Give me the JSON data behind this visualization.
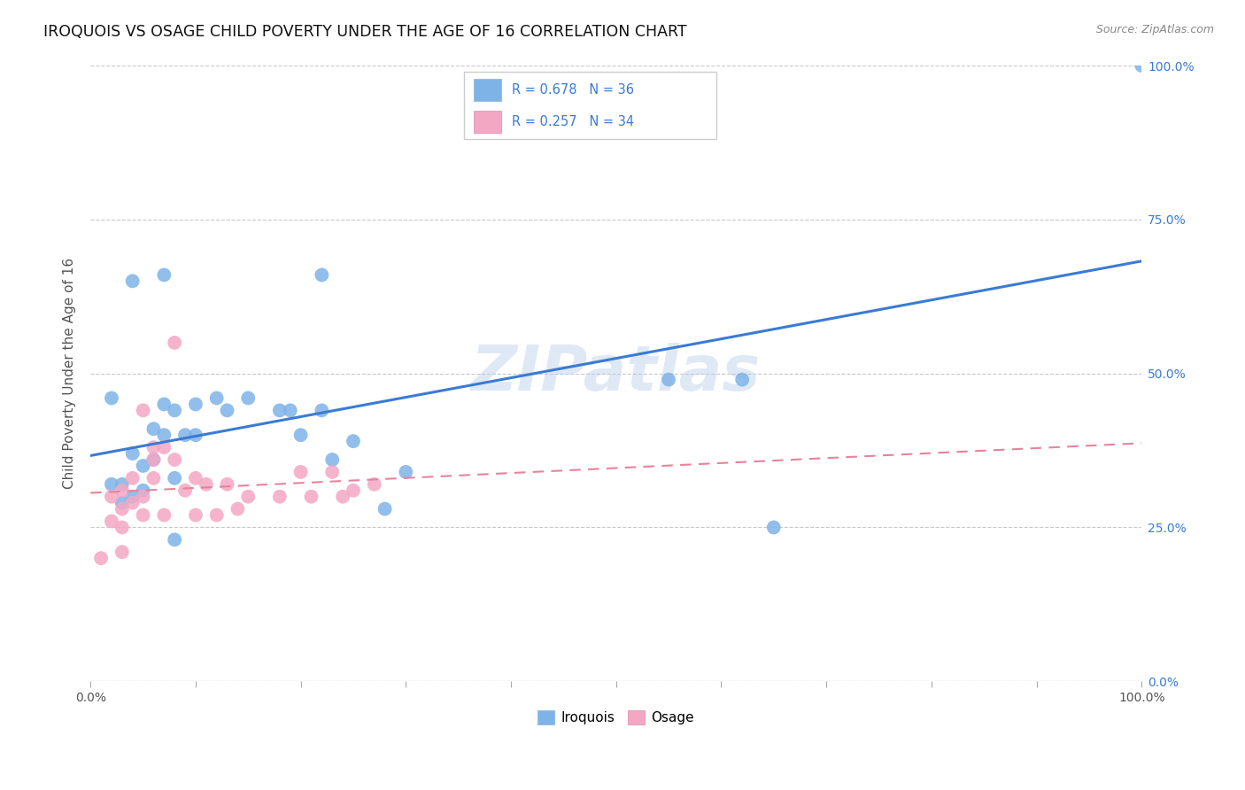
{
  "title": "IROQUOIS VS OSAGE CHILD POVERTY UNDER THE AGE OF 16 CORRELATION CHART",
  "source": "Source: ZipAtlas.com",
  "ylabel": "Child Poverty Under the Age of 16",
  "watermark": "ZIPatlas",
  "legend_bottom": [
    "Iroquois",
    "Osage"
  ],
  "iroquois_color": "#7EB3E8",
  "osage_color": "#F4A7C3",
  "iroquois_line_color": "#3A7BD5",
  "osage_line_color": "#E8829A",
  "iroquois_r": 0.678,
  "iroquois_n": 36,
  "osage_r": 0.257,
  "osage_n": 34,
  "xlim": [
    0,
    1.0
  ],
  "ylim": [
    0,
    1.0
  ],
  "ytick_positions": [
    0.0,
    0.25,
    0.5,
    0.75,
    1.0
  ],
  "yticklabels_right": [
    "0.0%",
    "25.0%",
    "50.0%",
    "75.0%",
    "100.0%"
  ],
  "iroquois_x": [
    0.02,
    0.02,
    0.03,
    0.04,
    0.04,
    0.05,
    0.05,
    0.06,
    0.06,
    0.07,
    0.07,
    0.08,
    0.08,
    0.09,
    0.1,
    0.1,
    0.12,
    0.13,
    0.15,
    0.18,
    0.19,
    0.2,
    0.22,
    0.22,
    0.23,
    0.25,
    0.28,
    0.3,
    0.55,
    0.62,
    0.65,
    1.0,
    0.03,
    0.04,
    0.07,
    0.08
  ],
  "iroquois_y": [
    0.46,
    0.32,
    0.32,
    0.3,
    0.37,
    0.31,
    0.35,
    0.36,
    0.41,
    0.45,
    0.4,
    0.33,
    0.44,
    0.4,
    0.4,
    0.45,
    0.46,
    0.44,
    0.46,
    0.44,
    0.44,
    0.4,
    0.44,
    0.66,
    0.36,
    0.39,
    0.28,
    0.34,
    0.49,
    0.49,
    0.25,
    1.0,
    0.29,
    0.65,
    0.66,
    0.23
  ],
  "osage_x": [
    0.01,
    0.02,
    0.02,
    0.03,
    0.03,
    0.03,
    0.04,
    0.04,
    0.05,
    0.05,
    0.05,
    0.06,
    0.06,
    0.06,
    0.07,
    0.07,
    0.08,
    0.08,
    0.09,
    0.1,
    0.1,
    0.11,
    0.12,
    0.13,
    0.14,
    0.15,
    0.18,
    0.2,
    0.21,
    0.23,
    0.24,
    0.25,
    0.27,
    0.03
  ],
  "osage_y": [
    0.2,
    0.26,
    0.3,
    0.25,
    0.28,
    0.31,
    0.29,
    0.33,
    0.27,
    0.3,
    0.44,
    0.33,
    0.36,
    0.38,
    0.27,
    0.38,
    0.36,
    0.55,
    0.31,
    0.27,
    0.33,
    0.32,
    0.27,
    0.32,
    0.28,
    0.3,
    0.3,
    0.34,
    0.3,
    0.34,
    0.3,
    0.31,
    0.32,
    0.21
  ],
  "iroquois_line": [
    0.0,
    1.0,
    0.18,
    0.88
  ],
  "osage_line": [
    0.0,
    1.0,
    0.22,
    0.65
  ]
}
